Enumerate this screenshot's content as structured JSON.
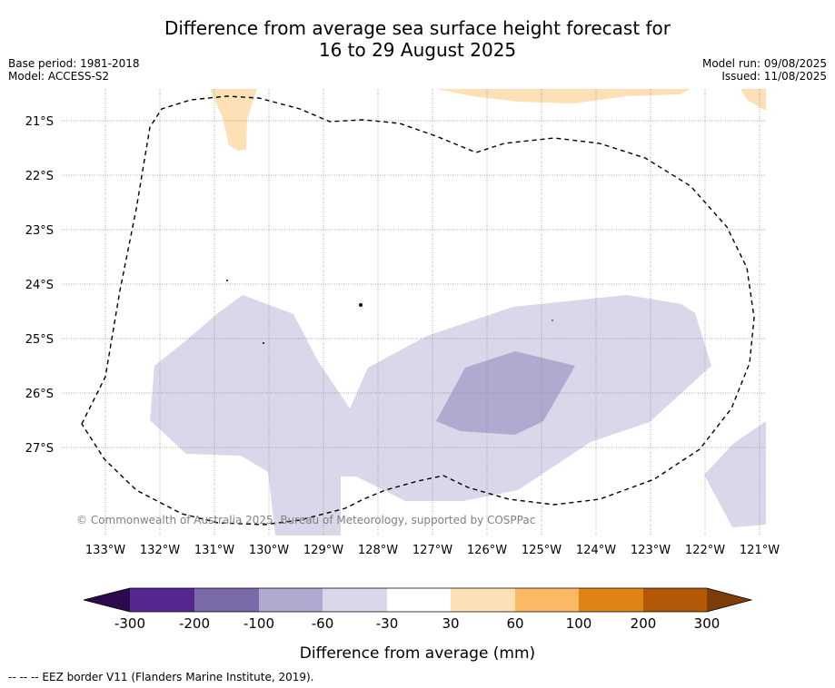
{
  "title_line1": "Difference from average sea surface height forecast for",
  "title_line2": "16 to 29 August 2025",
  "base_period": "Base period: 1981-2018",
  "model": "Model: ACCESS-S2",
  "model_run": "Model run: 09/08/2025",
  "issued": "Issued: 11/08/2025",
  "copyright": "© Commonwealth of Australia 2025, Bureau of Meteorology, supported by COSPPac",
  "colorbar_label": "Difference from average (mm)",
  "footer": "--  --  -- EEZ border V11 (Flanders Marine Institute, 2019).",
  "lat_labels": [
    "21°S",
    "22°S",
    "23°S",
    "24°S",
    "25°S",
    "26°S",
    "27°S"
  ],
  "lon_labels": [
    "133°W",
    "132°W",
    "131°W",
    "130°W",
    "129°W",
    "128°W",
    "127°W",
    "126°W",
    "125°W",
    "124°W",
    "123°W",
    "122°W",
    "121°W"
  ],
  "colorbar": {
    "ticks": [
      "-300",
      "-200",
      "-100",
      "-60",
      "-30",
      "30",
      "60",
      "100",
      "200",
      "300"
    ],
    "colors": [
      "#4a1f6f",
      "#54278f",
      "#7a6aa8",
      "#b1a9d0",
      "#d8d8ea",
      "#ffffff",
      "#fee0b6",
      "#fdb863",
      "#e08214",
      "#b35806",
      "#7f3b08"
    ]
  },
  "chart_data": {
    "type": "map",
    "lon_range": [
      "133.5°W",
      "120.9°W"
    ],
    "lat_range": [
      "20.6°S",
      "28.6°S"
    ],
    "features": [
      {
        "name": "eez-border",
        "style": "dashed"
      },
      {
        "name": "anomaly-30-to-60",
        "color": "#fee0b6"
      },
      {
        "name": "anomaly-minus60-to-minus30",
        "color": "#d8d8ea"
      },
      {
        "name": "anomaly-minus100-to-minus60",
        "color": "#b1a9d0"
      }
    ]
  }
}
